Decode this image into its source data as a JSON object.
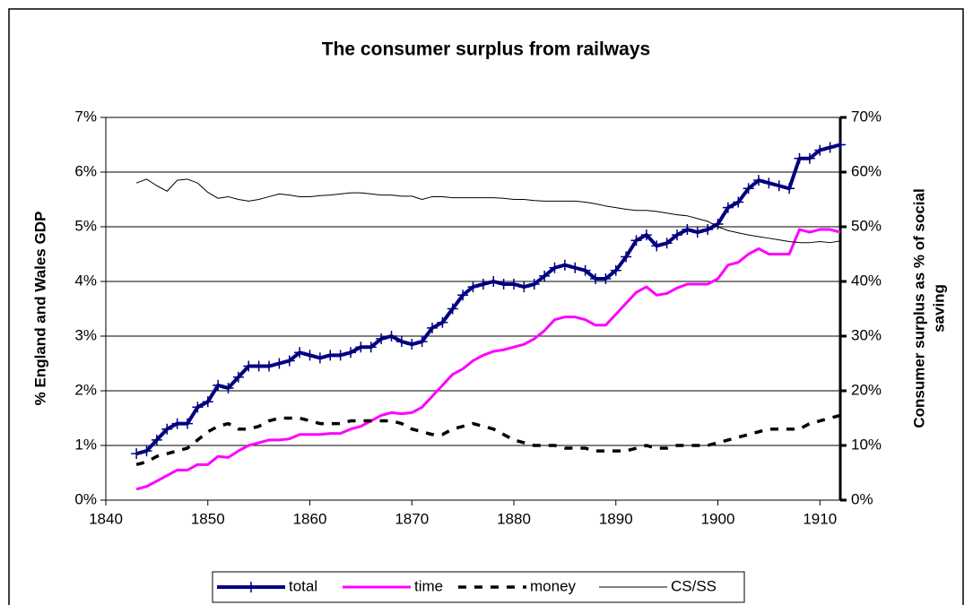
{
  "chart_data": {
    "type": "line",
    "title": "The consumer surplus from railways",
    "ylabel": "% England and Wales GDP",
    "y2label": [
      "Consumer surplus as % of social",
      "saving"
    ],
    "x": [
      1843,
      1844,
      1845,
      1846,
      1847,
      1848,
      1849,
      1850,
      1851,
      1852,
      1853,
      1854,
      1855,
      1856,
      1857,
      1858,
      1859,
      1860,
      1861,
      1862,
      1863,
      1864,
      1865,
      1866,
      1867,
      1868,
      1869,
      1870,
      1871,
      1872,
      1873,
      1874,
      1875,
      1876,
      1877,
      1878,
      1879,
      1880,
      1881,
      1882,
      1883,
      1884,
      1885,
      1886,
      1887,
      1888,
      1889,
      1890,
      1891,
      1892,
      1893,
      1894,
      1895,
      1896,
      1897,
      1898,
      1899,
      1900,
      1901,
      1902,
      1903,
      1904,
      1905,
      1906,
      1907,
      1908,
      1909,
      1910,
      1911,
      1912
    ],
    "xlim": [
      1840,
      1912
    ],
    "xticks": [
      1840,
      1850,
      1860,
      1870,
      1880,
      1890,
      1900,
      1910
    ],
    "ylim": [
      0,
      7
    ],
    "yticks": [
      {
        "value": 0,
        "label": "0%"
      },
      {
        "value": 1,
        "label": "1%"
      },
      {
        "value": 2,
        "label": "2%"
      },
      {
        "value": 3,
        "label": "3%"
      },
      {
        "value": 4,
        "label": "4%"
      },
      {
        "value": 5,
        "label": "5%"
      },
      {
        "value": 6,
        "label": "6%"
      },
      {
        "value": 7,
        "label": "7%"
      }
    ],
    "y2lim": [
      0,
      70
    ],
    "y2ticks": [
      {
        "value": 0,
        "label": "0%"
      },
      {
        "value": 10,
        "label": "10%"
      },
      {
        "value": 20,
        "label": "20%"
      },
      {
        "value": 30,
        "label": "30%"
      },
      {
        "value": 40,
        "label": "40%"
      },
      {
        "value": 50,
        "label": "50%"
      },
      {
        "value": 60,
        "label": "60%"
      },
      {
        "value": 70,
        "label": "70%"
      }
    ],
    "grid": true,
    "legend": "bottom",
    "series": [
      {
        "name": "total",
        "color": "#000080",
        "style": "solid-marker",
        "values": [
          0.85,
          0.9,
          1.1,
          1.3,
          1.4,
          1.4,
          1.7,
          1.8,
          2.1,
          2.05,
          2.25,
          2.45,
          2.45,
          2.45,
          2.5,
          2.55,
          2.7,
          2.65,
          2.6,
          2.65,
          2.65,
          2.7,
          2.8,
          2.8,
          2.95,
          3.0,
          2.9,
          2.85,
          2.9,
          3.15,
          3.25,
          3.5,
          3.75,
          3.9,
          3.95,
          4.0,
          3.95,
          3.95,
          3.9,
          3.95,
          4.1,
          4.25,
          4.3,
          4.25,
          4.2,
          4.05,
          4.05,
          4.2,
          4.45,
          4.75,
          4.85,
          4.65,
          4.7,
          4.85,
          4.95,
          4.9,
          4.95,
          5.05,
          5.35,
          5.45,
          5.7,
          5.85,
          5.8,
          5.75,
          5.7,
          6.25,
          6.25,
          6.4,
          6.45,
          6.5
        ]
      },
      {
        "name": "time",
        "color": "#ff00ff",
        "style": "solid",
        "values": [
          0.2,
          0.25,
          0.35,
          0.45,
          0.55,
          0.55,
          0.65,
          0.65,
          0.8,
          0.78,
          0.9,
          1.0,
          1.05,
          1.1,
          1.1,
          1.12,
          1.2,
          1.2,
          1.2,
          1.22,
          1.22,
          1.3,
          1.35,
          1.45,
          1.55,
          1.6,
          1.58,
          1.6,
          1.7,
          1.9,
          2.1,
          2.3,
          2.4,
          2.55,
          2.65,
          2.72,
          2.75,
          2.8,
          2.85,
          2.95,
          3.1,
          3.3,
          3.35,
          3.35,
          3.3,
          3.2,
          3.2,
          3.4,
          3.6,
          3.8,
          3.9,
          3.75,
          3.78,
          3.88,
          3.95,
          3.95,
          3.95,
          4.05,
          4.3,
          4.35,
          4.5,
          4.6,
          4.5,
          4.5,
          4.5,
          4.95,
          4.9,
          4.95,
          4.95,
          4.9
        ]
      },
      {
        "name": "money",
        "color": "#000000",
        "style": "dashed",
        "values": [
          0.65,
          0.7,
          0.8,
          0.85,
          0.9,
          0.95,
          1.1,
          1.25,
          1.35,
          1.4,
          1.3,
          1.3,
          1.35,
          1.45,
          1.5,
          1.5,
          1.5,
          1.45,
          1.4,
          1.4,
          1.4,
          1.45,
          1.45,
          1.45,
          1.45,
          1.45,
          1.4,
          1.3,
          1.25,
          1.2,
          1.2,
          1.3,
          1.35,
          1.4,
          1.35,
          1.3,
          1.2,
          1.1,
          1.05,
          1.0,
          1.0,
          1.0,
          0.95,
          0.95,
          0.95,
          0.9,
          0.9,
          0.9,
          0.9,
          0.95,
          1.0,
          0.95,
          0.95,
          1.0,
          1.0,
          1.0,
          1.0,
          1.05,
          1.1,
          1.15,
          1.2,
          1.25,
          1.3,
          1.3,
          1.3,
          1.3,
          1.4,
          1.45,
          1.5,
          1.55
        ]
      },
      {
        "name": "CS/SS",
        "color": "#000000",
        "style": "thin",
        "axis": "y2",
        "values": [
          58,
          58.7,
          57.5,
          56.5,
          58.5,
          58.7,
          58,
          56.3,
          55.2,
          55.5,
          55,
          54.7,
          55,
          55.5,
          56,
          55.8,
          55.5,
          55.5,
          55.7,
          55.8,
          56,
          56.2,
          56.2,
          56,
          55.8,
          55.8,
          55.6,
          55.6,
          55,
          55.5,
          55.5,
          55.3,
          55.3,
          55.3,
          55.3,
          55.3,
          55.2,
          55,
          55,
          54.8,
          54.7,
          54.7,
          54.7,
          54.7,
          54.5,
          54.2,
          53.8,
          53.5,
          53.2,
          53,
          53,
          52.8,
          52.5,
          52.2,
          52,
          51.5,
          51,
          50,
          49.3,
          48.9,
          48.5,
          48.2,
          47.9,
          47.6,
          47.3,
          47.1,
          47.1,
          47.3,
          47.1,
          47.4
        ]
      }
    ]
  }
}
